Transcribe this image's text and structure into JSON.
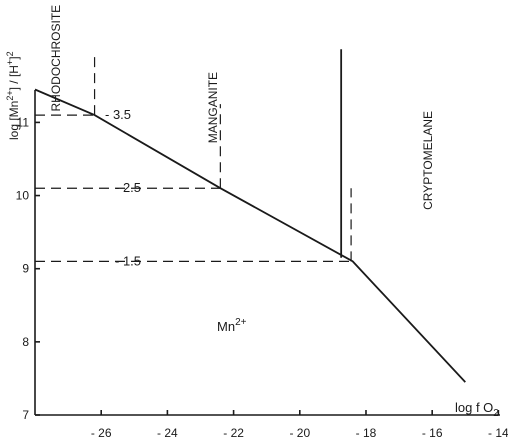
{
  "chart_data": {
    "type": "line",
    "xlabel": "log f O2",
    "ylabel": "log [Mn2+] / [H+]2",
    "xlim": [
      -28.0,
      -13.8
    ],
    "ylim": [
      7.0,
      12.4
    ],
    "x_ticks": [
      -26,
      -24,
      -22,
      -20,
      -18,
      -16,
      -14
    ],
    "y_ticks": [
      7,
      8,
      9,
      10,
      11
    ],
    "boundary": {
      "points": [
        [
          -28.0,
          11.45
        ],
        [
          -26.2,
          11.1
        ],
        [
          -22.4,
          10.1
        ],
        [
          -18.6,
          9.15
        ],
        [
          -18.4,
          9.1
        ],
        [
          -15.0,
          7.45
        ]
      ]
    },
    "vertical_solid": {
      "x": -18.75,
      "y_from": 9.15,
      "y_to": 12.0
    },
    "vertical_dashed": [
      {
        "x": -26.2,
        "y_from": 11.1,
        "y_to": 11.95
      },
      {
        "x": -22.4,
        "y_from": 10.1,
        "y_to": 11.25
      },
      {
        "x": -18.45,
        "y_from": 9.1,
        "y_to": 10.1
      }
    ],
    "ph_lines": [
      {
        "label": "3.5",
        "y": 11.1,
        "x_end": -26.2
      },
      {
        "label": "2.5",
        "y": 10.1,
        "x_end": -22.4
      },
      {
        "label": "1.5",
        "y": 9.1,
        "x_end": -18.4
      }
    ],
    "fields": [
      {
        "label": "RHODOCHROSITE",
        "x": -27.25,
        "y": 12.5,
        "rotated": true
      },
      {
        "label": "MANGANITE",
        "x": -22.5,
        "y": 11.65,
        "rotated": true
      },
      {
        "label": "CRYPTOMELANE",
        "x": -16.0,
        "y": 11.05,
        "rotated": true
      }
    ],
    "ion": {
      "base": "Mn",
      "sup": "2+",
      "x": -22.5,
      "y": 8.15
    },
    "x_unit_label": {
      "base": "log f O",
      "sub": "2"
    },
    "y_unit_label": {
      "pre": "log [Mn",
      "sup1": "2+",
      "mid": "] / [H",
      "sup2": "+",
      "post": "]",
      "sup3": "2"
    }
  }
}
